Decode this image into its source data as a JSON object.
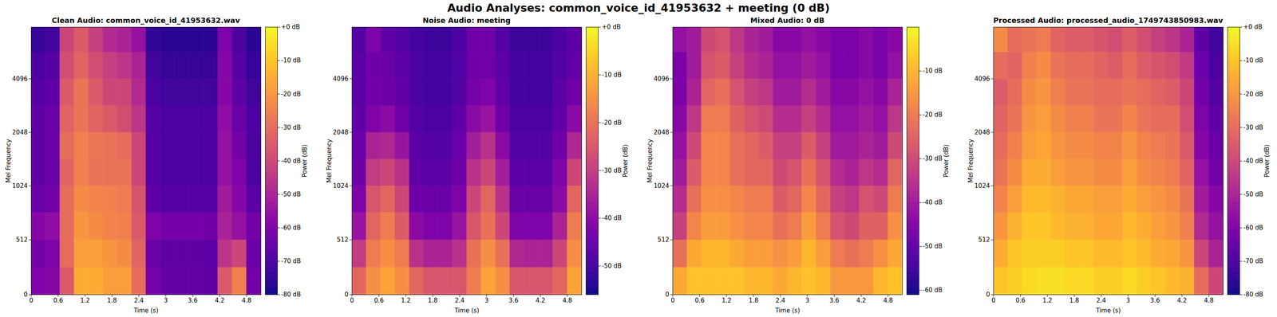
{
  "title": "Audio Analyses: common_voice_id_41953632 + meeting (0 dB)",
  "chart_data": [
    {
      "type": "heatmap",
      "title": "Clean Audio: common_voice_id_41953632.wav",
      "x_label": "Time (s)",
      "y_label": "Mel Frequency",
      "xlim": [
        0,
        5.12
      ],
      "xticks": [
        0,
        0.6,
        1.2,
        1.8,
        2.4,
        3,
        3.6,
        4.2,
        4.8
      ],
      "ylim": [
        0,
        8000
      ],
      "yticks": [
        0,
        512,
        1024,
        2048,
        4096
      ],
      "x_edges": [
        0,
        0.32,
        0.64,
        0.96,
        1.28,
        1.6,
        1.92,
        2.24,
        2.56,
        2.88,
        3.2,
        3.52,
        3.84,
        4.16,
        4.48,
        4.8,
        5.12
      ],
      "y_edges": [
        0,
        256,
        512,
        768,
        1024,
        1448,
        2048,
        2896,
        4096,
        5793,
        8000
      ],
      "cells": [
        [
          -60,
          -58,
          -35,
          -15,
          -15,
          -18,
          -18,
          -30,
          -62,
          -65,
          -65,
          -65,
          -66,
          -35,
          -25,
          -62
        ],
        [
          -62,
          -60,
          -30,
          -18,
          -18,
          -20,
          -22,
          -32,
          -64,
          -66,
          -66,
          -66,
          -67,
          -45,
          -40,
          -64
        ],
        [
          -58,
          -56,
          -30,
          -20,
          -22,
          -24,
          -25,
          -35,
          -60,
          -62,
          -62,
          -62,
          -63,
          -50,
          -55,
          -62
        ],
        [
          -64,
          -62,
          -30,
          -22,
          -24,
          -25,
          -26,
          -36,
          -66,
          -68,
          -68,
          -68,
          -68,
          -52,
          -58,
          -67
        ],
        [
          -66,
          -64,
          -32,
          -25,
          -28,
          -28,
          -28,
          -40,
          -68,
          -70,
          -70,
          -70,
          -70,
          -55,
          -60,
          -70
        ],
        [
          -66,
          -64,
          -30,
          -25,
          -27,
          -28,
          -30,
          -40,
          -68,
          -70,
          -70,
          -70,
          -70,
          -55,
          -62,
          -70
        ],
        [
          -66,
          -64,
          -32,
          -28,
          -32,
          -35,
          -38,
          -45,
          -68,
          -70,
          -70,
          -70,
          -70,
          -56,
          -64,
          -70
        ],
        [
          -68,
          -66,
          -35,
          -28,
          -35,
          -40,
          -40,
          -48,
          -70,
          -72,
          -72,
          -72,
          -72,
          -58,
          -66,
          -72
        ],
        [
          -70,
          -68,
          -38,
          -32,
          -38,
          -42,
          -45,
          -50,
          -72,
          -74,
          -74,
          -74,
          -74,
          -58,
          -68,
          -74
        ],
        [
          -74,
          -72,
          -40,
          -35,
          -42,
          -48,
          -50,
          -55,
          -75,
          -76,
          -76,
          -76,
          -76,
          -60,
          -70,
          -76
        ]
      ],
      "color": "plasma",
      "colorbar": {
        "label": "Power (dB)",
        "range": [
          -80,
          0
        ],
        "ticks": [
          {
            "value": 0,
            "label": "+0 dB"
          },
          {
            "value": -10,
            "label": "-10 dB"
          },
          {
            "value": -20,
            "label": "-20 dB"
          },
          {
            "value": -30,
            "label": "-30 dB"
          },
          {
            "value": -40,
            "label": "-40 dB"
          },
          {
            "value": -50,
            "label": "-50 dB"
          },
          {
            "value": -60,
            "label": "-60 dB"
          },
          {
            "value": -70,
            "label": "-70 dB"
          },
          {
            "value": -80,
            "label": "-80 dB"
          }
        ]
      }
    },
    {
      "type": "heatmap",
      "title": "Noise Audio: meeting",
      "x_label": "Time (s)",
      "y_label": "Mel Frequency",
      "xlim": [
        0,
        5.12
      ],
      "xticks": [
        0,
        0.6,
        1.2,
        1.8,
        2.4,
        3,
        3.6,
        4.2,
        4.8
      ],
      "ylim": [
        0,
        8000
      ],
      "yticks": [
        0,
        512,
        1024,
        2048,
        4096
      ],
      "x_edges": [
        0,
        0.32,
        0.64,
        0.96,
        1.28,
        1.6,
        1.92,
        2.24,
        2.56,
        2.88,
        3.2,
        3.52,
        3.84,
        4.16,
        4.48,
        4.8,
        5.12
      ],
      "y_edges": [
        0,
        256,
        512,
        768,
        1024,
        1448,
        2048,
        2896,
        4096,
        5793,
        8000
      ],
      "cells": [
        [
          -22,
          -15,
          -12,
          -15,
          -22,
          -25,
          -25,
          -25,
          -18,
          -12,
          -15,
          -25,
          -25,
          -25,
          -22,
          -12
        ],
        [
          -30,
          -18,
          -15,
          -18,
          -32,
          -35,
          -35,
          -32,
          -20,
          -15,
          -20,
          -34,
          -35,
          -35,
          -28,
          -15
        ],
        [
          -38,
          -22,
          -18,
          -24,
          -40,
          -42,
          -42,
          -38,
          -25,
          -20,
          -28,
          -42,
          -42,
          -42,
          -35,
          -18
        ],
        [
          -42,
          -25,
          -22,
          -28,
          -44,
          -45,
          -45,
          -42,
          -28,
          -22,
          -32,
          -45,
          -45,
          -45,
          -40,
          -22
        ],
        [
          -44,
          -30,
          -28,
          -32,
          -46,
          -47,
          -47,
          -44,
          -32,
          -28,
          -36,
          -47,
          -47,
          -47,
          -42,
          -28
        ],
        [
          -45,
          -35,
          -34,
          -38,
          -47,
          -48,
          -48,
          -45,
          -36,
          -32,
          -40,
          -48,
          -48,
          -48,
          -44,
          -34
        ],
        [
          -46,
          -42,
          -40,
          -44,
          -48,
          -49,
          -49,
          -46,
          -40,
          -38,
          -44,
          -49,
          -49,
          -49,
          -46,
          -40
        ],
        [
          -47,
          -44,
          -44,
          -46,
          -49,
          -50,
          -50,
          -48,
          -43,
          -42,
          -46,
          -50,
          -50,
          -50,
          -47,
          -44
        ],
        [
          -47,
          -44,
          -45,
          -47,
          -49,
          -50,
          -50,
          -48,
          -44,
          -44,
          -47,
          -50,
          -50,
          -50,
          -48,
          -46
        ],
        [
          -48,
          -42,
          -46,
          -48,
          -50,
          -51,
          -51,
          -49,
          -44,
          -44,
          -48,
          -51,
          -51,
          -51,
          -49,
          -47
        ]
      ],
      "color": "plasma",
      "colorbar": {
        "label": "Power (dB)",
        "range": [
          -56,
          0
        ],
        "ticks": [
          {
            "value": 0,
            "label": "+0 dB"
          },
          {
            "value": -10,
            "label": "-10 dB"
          },
          {
            "value": -20,
            "label": "-20 dB"
          },
          {
            "value": -30,
            "label": "-30 dB"
          },
          {
            "value": -40,
            "label": "-40 dB"
          },
          {
            "value": -50,
            "label": "-50 dB"
          }
        ]
      }
    },
    {
      "type": "heatmap",
      "title": "Mixed Audio: 0 dB",
      "x_label": "Time (s)",
      "y_label": "Mel Frequency",
      "xlim": [
        0,
        5.12
      ],
      "xticks": [
        0,
        0.6,
        1.2,
        1.8,
        2.4,
        3,
        3.6,
        4.2,
        4.8
      ],
      "ylim": [
        0,
        8000
      ],
      "yticks": [
        0,
        512,
        1024,
        2048,
        4096
      ],
      "x_edges": [
        0,
        0.32,
        0.64,
        0.96,
        1.28,
        1.6,
        1.92,
        2.24,
        2.56,
        2.88,
        3.2,
        3.52,
        3.84,
        4.16,
        4.48,
        4.8,
        5.12
      ],
      "y_edges": [
        0,
        256,
        512,
        768,
        1024,
        1448,
        2048,
        2896,
        4096,
        5793,
        8000
      ],
      "cells": [
        [
          -12,
          -8,
          -8,
          -8,
          -8,
          -10,
          -10,
          -12,
          -10,
          -8,
          -10,
          -15,
          -15,
          -15,
          -10,
          -8
        ],
        [
          -22,
          -12,
          -10,
          -10,
          -12,
          -14,
          -14,
          -16,
          -14,
          -10,
          -14,
          -20,
          -22,
          -20,
          -16,
          -12
        ],
        [
          -32,
          -18,
          -14,
          -14,
          -16,
          -18,
          -18,
          -22,
          -20,
          -14,
          -20,
          -28,
          -30,
          -25,
          -25,
          -16
        ],
        [
          -36,
          -22,
          -16,
          -16,
          -18,
          -20,
          -20,
          -26,
          -24,
          -18,
          -24,
          -32,
          -34,
          -28,
          -30,
          -20
        ],
        [
          -40,
          -26,
          -18,
          -18,
          -22,
          -24,
          -24,
          -30,
          -28,
          -22,
          -28,
          -36,
          -38,
          -34,
          -36,
          -24
        ],
        [
          -42,
          -30,
          -18,
          -18,
          -22,
          -24,
          -26,
          -32,
          -32,
          -26,
          -32,
          -40,
          -40,
          -38,
          -40,
          -30
        ],
        [
          -44,
          -34,
          -20,
          -20,
          -25,
          -28,
          -30,
          -36,
          -36,
          -32,
          -36,
          -42,
          -42,
          -40,
          -42,
          -34
        ],
        [
          -46,
          -38,
          -24,
          -22,
          -28,
          -32,
          -34,
          -40,
          -40,
          -36,
          -40,
          -44,
          -44,
          -42,
          -44,
          -38
        ],
        [
          -46,
          -40,
          -28,
          -26,
          -32,
          -36,
          -38,
          -42,
          -42,
          -40,
          -42,
          -46,
          -46,
          -44,
          -46,
          -42
        ],
        [
          -42,
          -40,
          -30,
          -28,
          -34,
          -38,
          -40,
          -44,
          -44,
          -42,
          -44,
          -46,
          -46,
          -44,
          -46,
          -44
        ]
      ],
      "color": "plasma",
      "colorbar": {
        "label": "Power (dB)",
        "range": [
          -61,
          0
        ],
        "ticks": [
          {
            "value": -10,
            "label": "-10 dB"
          },
          {
            "value": -20,
            "label": "-20 dB"
          },
          {
            "value": -30,
            "label": "-30 dB"
          },
          {
            "value": -40,
            "label": "-40 dB"
          },
          {
            "value": -50,
            "label": "-50 dB"
          },
          {
            "value": -60,
            "label": "-60 dB"
          }
        ]
      }
    },
    {
      "type": "heatmap",
      "title": "Processed Audio: processed_audio_1749743850983.wav",
      "x_label": "Time (s)",
      "y_label": "Mel Frequency",
      "xlim": [
        0,
        5.12
      ],
      "xticks": [
        0,
        0.6,
        1.2,
        1.8,
        2.4,
        3,
        3.6,
        4.2,
        4.8
      ],
      "ylim": [
        0,
        8000
      ],
      "yticks": [
        0,
        512,
        1024,
        2048,
        4096
      ],
      "x_edges": [
        0,
        0.32,
        0.64,
        0.96,
        1.28,
        1.6,
        1.92,
        2.24,
        2.56,
        2.88,
        3.2,
        3.52,
        3.84,
        4.16,
        4.48,
        4.8,
        5.12
      ],
      "y_edges": [
        0,
        256,
        512,
        768,
        1024,
        1448,
        2048,
        2896,
        4096,
        5793,
        8000
      ],
      "cells": [
        [
          -10,
          -8,
          -6,
          -5,
          -5,
          -6,
          -6,
          -8,
          -8,
          -6,
          -8,
          -10,
          -12,
          -14,
          -30,
          -40
        ],
        [
          -15,
          -10,
          -8,
          -8,
          -8,
          -10,
          -10,
          -12,
          -12,
          -10,
          -12,
          -15,
          -16,
          -20,
          -40,
          -50
        ],
        [
          -20,
          -14,
          -10,
          -10,
          -12,
          -14,
          -14,
          -16,
          -16,
          -12,
          -15,
          -18,
          -20,
          -25,
          -48,
          -55
        ],
        [
          -24,
          -18,
          -12,
          -12,
          -14,
          -16,
          -16,
          -18,
          -18,
          -15,
          -18,
          -20,
          -22,
          -28,
          -52,
          -58
        ],
        [
          -28,
          -22,
          -15,
          -15,
          -18,
          -20,
          -20,
          -22,
          -22,
          -18,
          -22,
          -24,
          -26,
          -32,
          -55,
          -62
        ],
        [
          -30,
          -25,
          -18,
          -16,
          -20,
          -22,
          -22,
          -24,
          -24,
          -20,
          -24,
          -26,
          -28,
          -35,
          -58,
          -64
        ],
        [
          -32,
          -28,
          -20,
          -18,
          -22,
          -25,
          -25,
          -28,
          -28,
          -24,
          -28,
          -30,
          -30,
          -38,
          -60,
          -66
        ],
        [
          -34,
          -30,
          -22,
          -20,
          -25,
          -28,
          -28,
          -30,
          -30,
          -28,
          -30,
          -32,
          -34,
          -40,
          -62,
          -68
        ],
        [
          -30,
          -32,
          -25,
          -22,
          -28,
          -30,
          -30,
          -32,
          -34,
          -30,
          -34,
          -36,
          -38,
          -44,
          -64,
          -70
        ],
        [
          -22,
          -30,
          -28,
          -26,
          -32,
          -34,
          -34,
          -36,
          -38,
          -34,
          -38,
          -42,
          -45,
          -50,
          -66,
          -72
        ]
      ],
      "color": "plasma",
      "colorbar": {
        "label": "Power (dB)",
        "range": [
          -80,
          0
        ],
        "ticks": [
          {
            "value": 0,
            "label": "+0 dB"
          },
          {
            "value": -10,
            "label": "-10 dB"
          },
          {
            "value": -20,
            "label": "-20 dB"
          },
          {
            "value": -30,
            "label": "-30 dB"
          },
          {
            "value": -40,
            "label": "-40 dB"
          },
          {
            "value": -50,
            "label": "-50 dB"
          },
          {
            "value": -60,
            "label": "-60 dB"
          },
          {
            "value": -70,
            "label": "-70 dB"
          },
          {
            "value": -80,
            "label": "-80 dB"
          }
        ]
      }
    }
  ]
}
